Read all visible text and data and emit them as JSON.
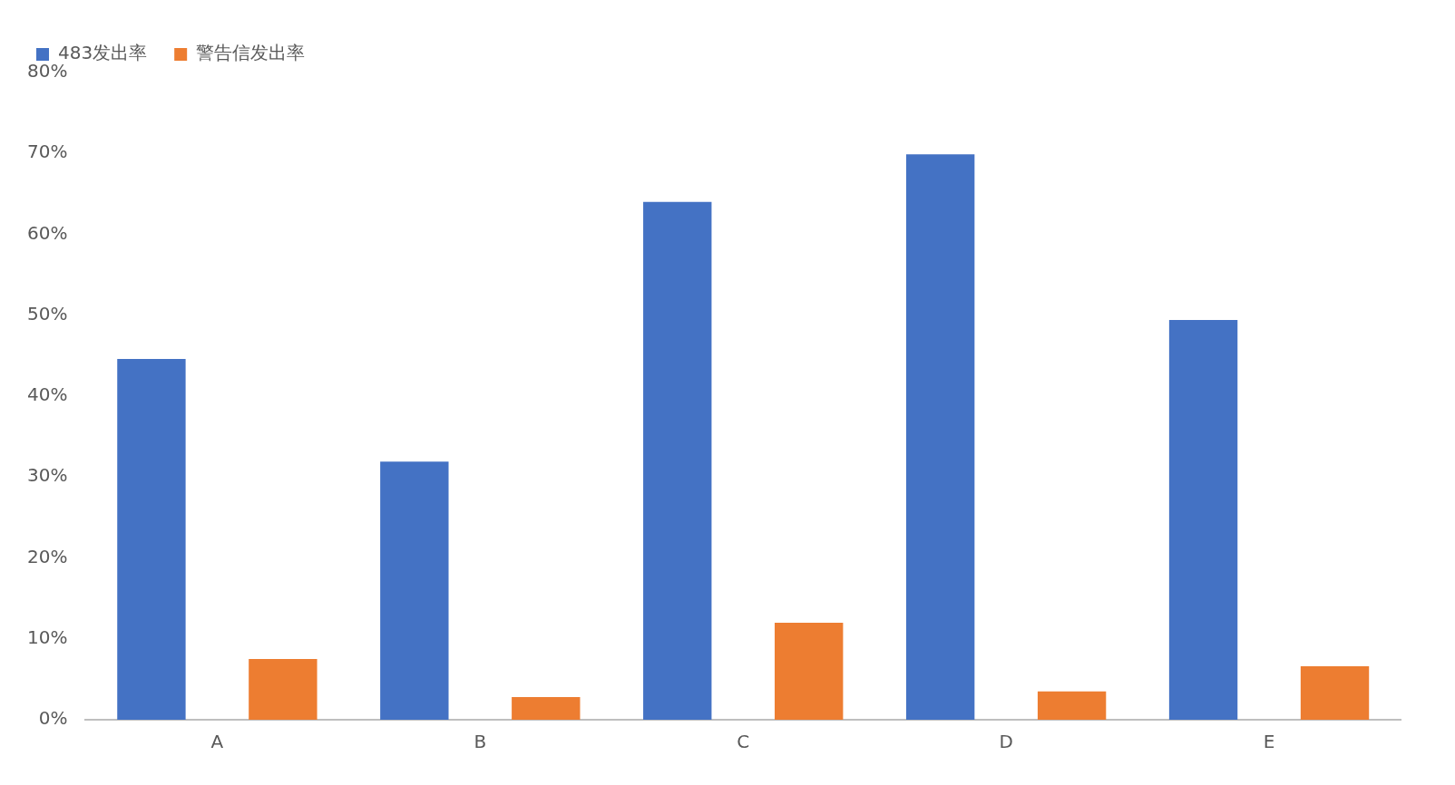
{
  "chart_data": {
    "type": "bar",
    "categories": [
      "A",
      "B",
      "C",
      "D",
      "E"
    ],
    "series": [
      {
        "name": "483发出率",
        "color": "#4472c4",
        "values": [
          44.6,
          31.9,
          64,
          69.9,
          49.4
        ]
      },
      {
        "name": "警告信发出率",
        "color": "#ed7d31",
        "values": [
          7.5,
          2.8,
          12,
          3.5,
          6.6
        ]
      }
    ],
    "ylim": [
      0,
      80
    ],
    "yticks": [
      {
        "value": 0,
        "label": "0%"
      },
      {
        "value": 10,
        "label": "10%"
      },
      {
        "value": 20,
        "label": "20%"
      },
      {
        "value": 30,
        "label": "30%"
      },
      {
        "value": 40,
        "label": "40%"
      },
      {
        "value": 50,
        "label": "50%"
      },
      {
        "value": 60,
        "label": "60%"
      },
      {
        "value": 70,
        "label": "70%"
      },
      {
        "value": 80,
        "label": "80%"
      }
    ],
    "grid": false,
    "legend": "top left"
  }
}
